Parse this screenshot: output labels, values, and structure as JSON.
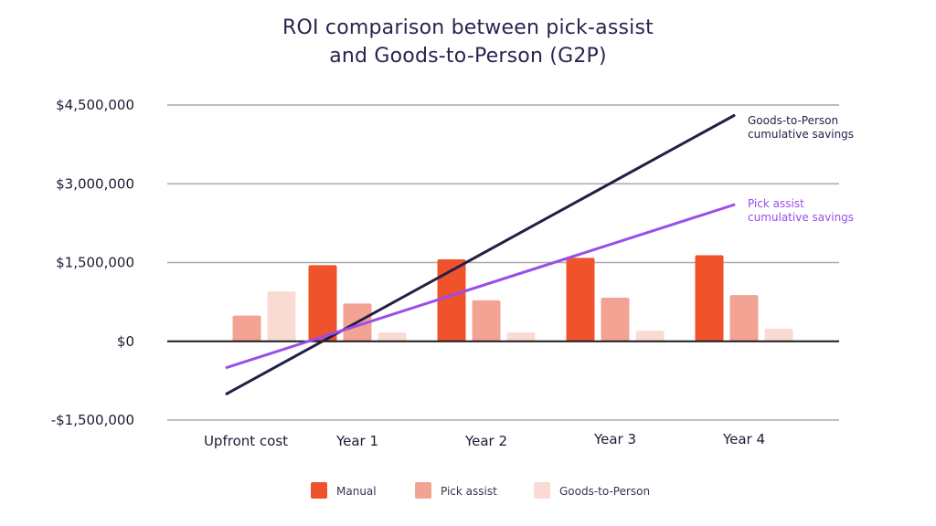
{
  "chart_data": {
    "type": "bar",
    "title": "ROI comparison between pick-assist and Goods-to-Person (G2P)",
    "title_lines": [
      "ROI comparison between pick-assist",
      "and Goods-to-Person (G2P)"
    ],
    "categories": [
      "Upfront cost",
      "Year 1",
      "Year 2",
      "Year 3",
      "Year 4"
    ],
    "ylim": [
      -1500000,
      4500000
    ],
    "yticks": [
      {
        "value": 4500000,
        "label": "$4,500,000"
      },
      {
        "value": 3000000,
        "label": "$3,000,000"
      },
      {
        "value": 1500000,
        "label": "$1,500,000"
      },
      {
        "value": 0,
        "label": "$0"
      },
      {
        "value": -1500000,
        "label": "-$1,500,000"
      }
    ],
    "grid": true,
    "legend_position": "bottom",
    "series": [
      {
        "name": "Manual",
        "color": "#f0522c",
        "values": [
          null,
          1450000,
          1560000,
          1590000,
          1640000
        ]
      },
      {
        "name": "Pick assist",
        "color": "#f2a394",
        "values": [
          490000,
          720000,
          780000,
          830000,
          880000
        ]
      },
      {
        "name": "Goods-to-Person",
        "color": "#fadbd3",
        "values": [
          950000,
          170000,
          170000,
          200000,
          240000
        ]
      }
    ],
    "lines": [
      {
        "name": "Goods-to-Person cumulative savings",
        "label_lines": [
          "Goods-to-Person",
          "cumulative savings"
        ],
        "color": "#241e45",
        "text_color": "#241e45",
        "x": [
          "Upfront cost",
          "Year 4"
        ],
        "y": [
          -1000000,
          4300000
        ]
      },
      {
        "name": "Pick assist cumulative savings",
        "label_lines": [
          "Pick assist",
          "cumulative savings"
        ],
        "color": "#9a4ee8",
        "text_color": "#9a4ee8",
        "x": [
          "Upfront cost",
          "Year 4"
        ],
        "y": [
          -500000,
          2600000
        ]
      }
    ]
  }
}
